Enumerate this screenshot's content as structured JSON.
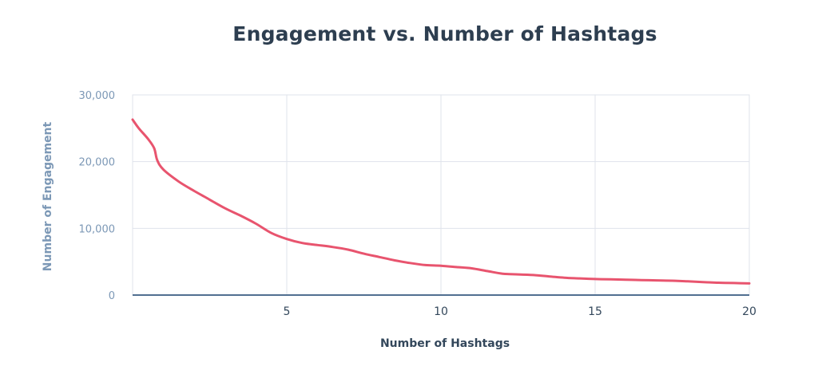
{
  "chart_data": {
    "type": "line",
    "title": "Engagement vs. Number of Hashtags",
    "xlabel": "Number of Hashtags",
    "ylabel": "Number of Engagement",
    "xlim": [
      0,
      20
    ],
    "ylim": [
      0,
      30000
    ],
    "x_ticks": [
      "5",
      "10",
      "15",
      "20"
    ],
    "y_ticks": [
      "0",
      "10,000",
      "20,000",
      "30,000"
    ],
    "grid": true,
    "colors": {
      "line": "#e8546e",
      "axis": "#516f90",
      "grid": "#dfe3eb"
    },
    "series": [
      {
        "x": [
          0,
          0.2,
          0.5,
          0.7,
          0.8,
          1,
          1.5,
          2,
          2.5,
          3,
          3.5,
          4,
          4.5,
          5,
          5.5,
          6,
          6.5,
          7,
          7.5,
          8,
          8.5,
          9,
          9.5,
          10,
          10.5,
          11,
          11.5,
          12,
          12.5,
          13,
          13.5,
          14,
          14.5,
          15,
          15.5,
          16,
          16.5,
          17,
          17.5,
          18,
          18.5,
          19,
          19.5,
          20
        ],
        "y": [
          26300,
          25000,
          23400,
          22000,
          20200,
          18800,
          17000,
          15600,
          14300,
          13000,
          11900,
          10700,
          9300,
          8400,
          7800,
          7500,
          7200,
          6800,
          6200,
          5700,
          5200,
          4800,
          4500,
          4400,
          4200,
          4000,
          3600,
          3200,
          3100,
          3000,
          2800,
          2600,
          2500,
          2400,
          2350,
          2300,
          2250,
          2200,
          2150,
          2050,
          1950,
          1850,
          1800,
          1750
        ]
      }
    ]
  }
}
